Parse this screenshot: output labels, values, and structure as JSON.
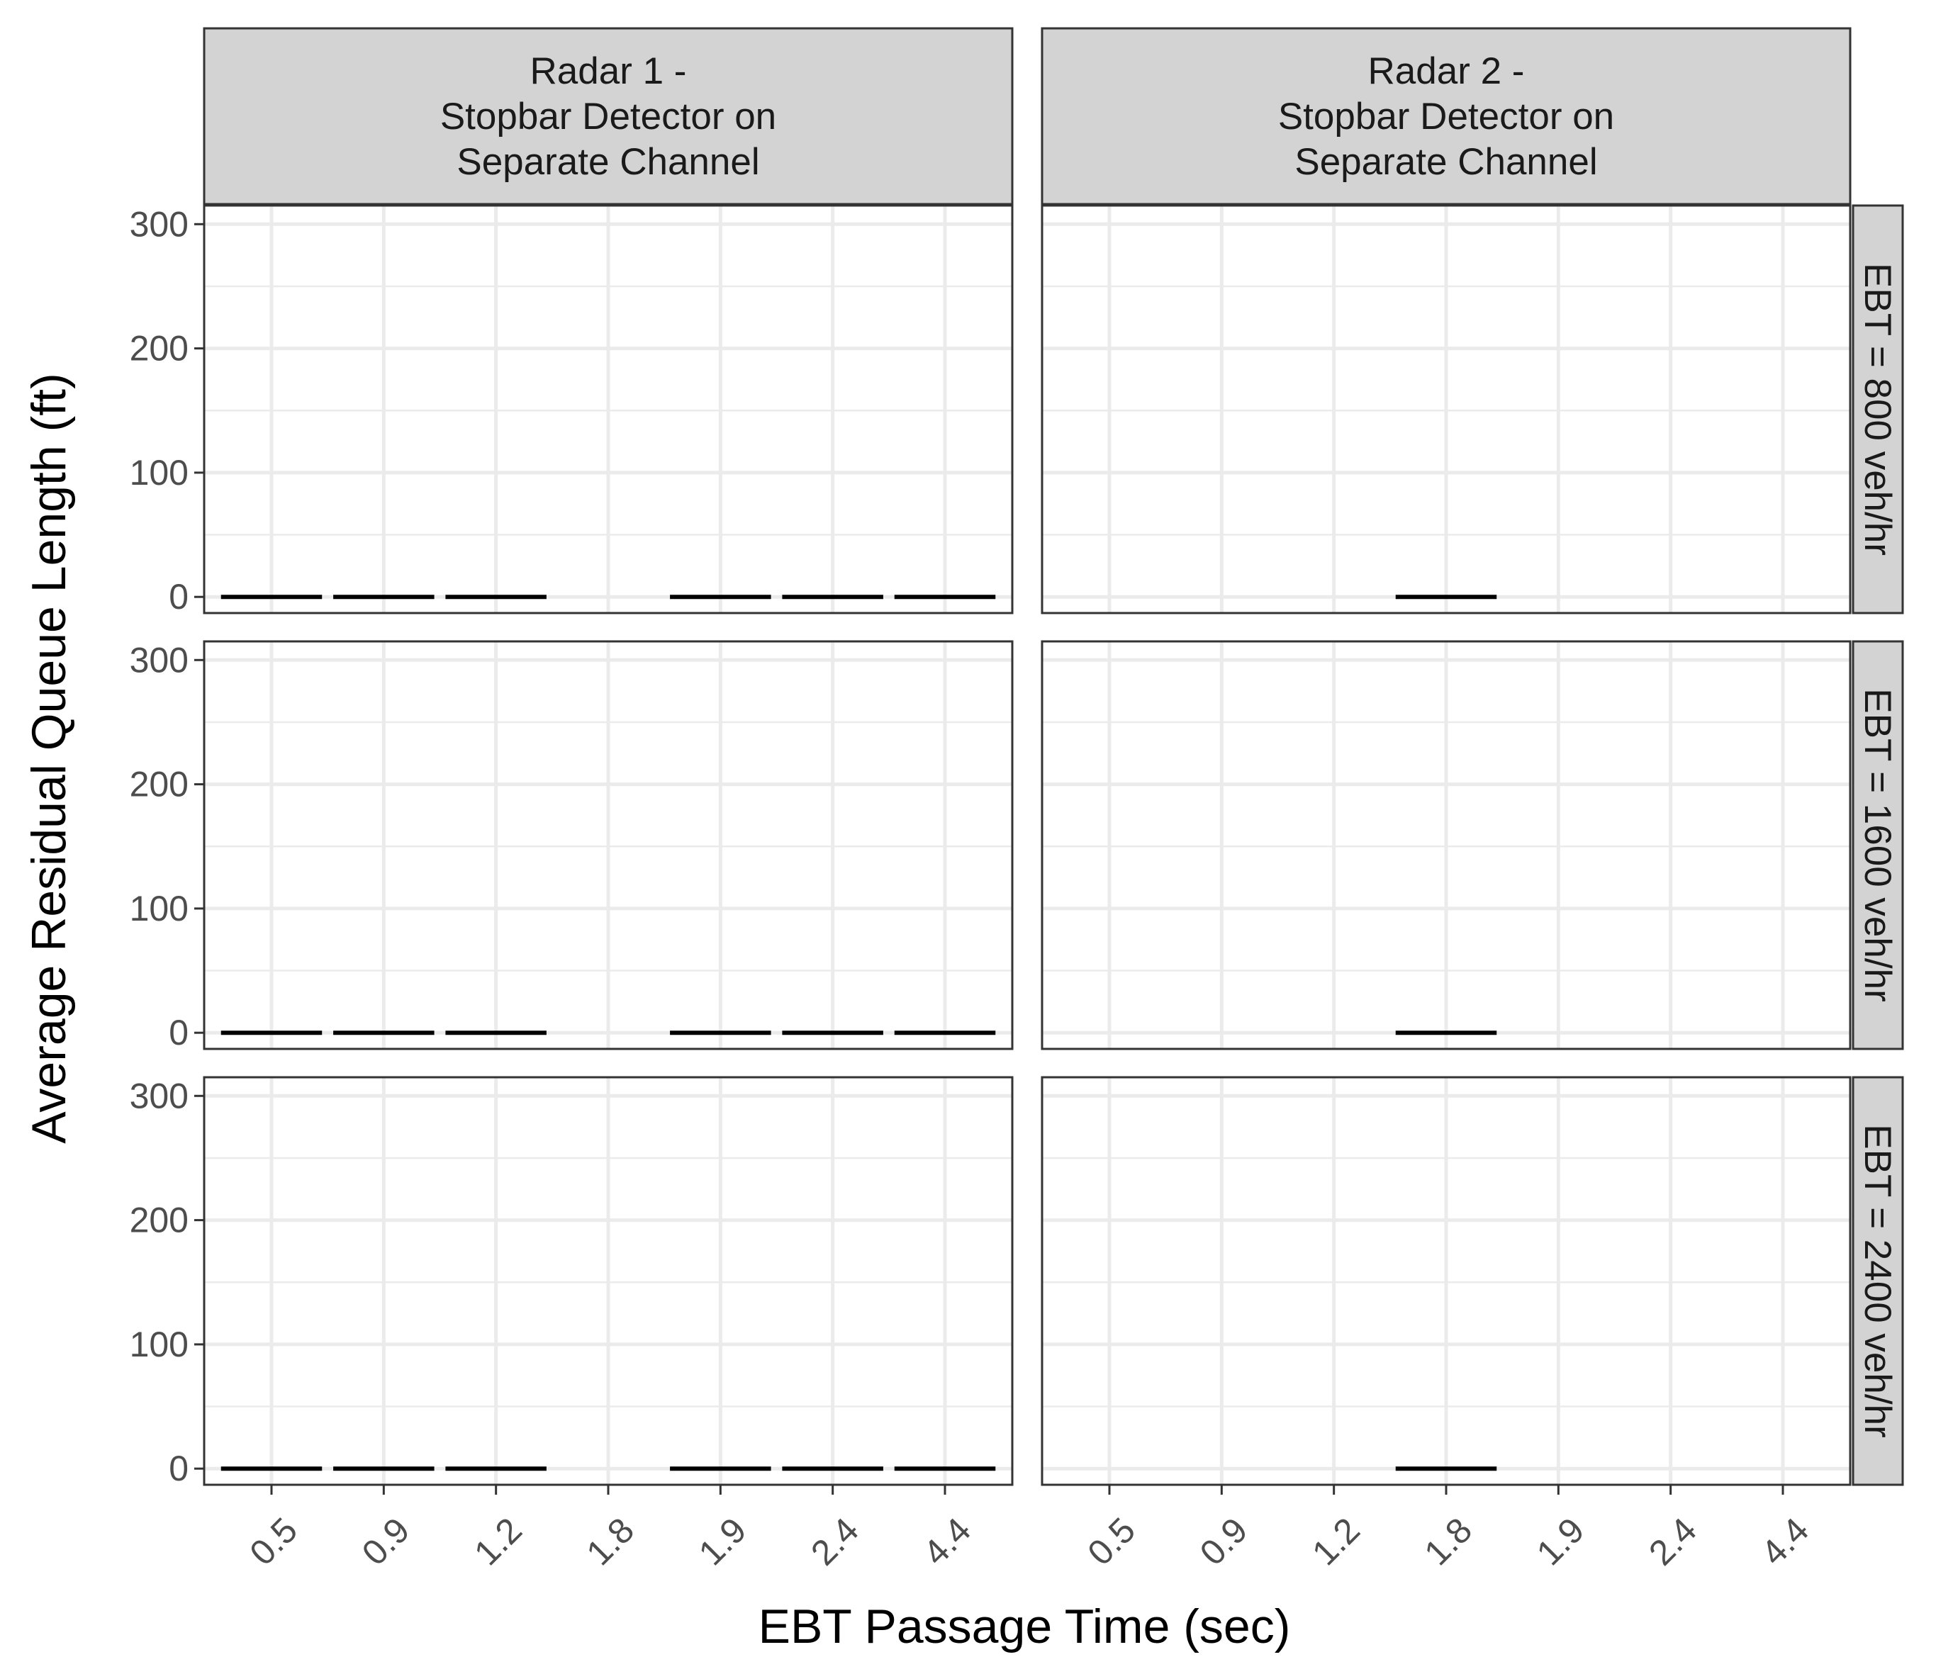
{
  "chart_data": {
    "type": "crossbar",
    "xlabel": "EBT Passage Time (sec)",
    "ylabel": "Average Residual Queue Length (ft)",
    "categories": [
      "0.5",
      "0.9",
      "1.2",
      "1.8",
      "1.9",
      "2.4",
      "4.4"
    ],
    "y_ticks": [
      0,
      100,
      200,
      300
    ],
    "ylim": [
      -13,
      315
    ],
    "grid": true,
    "column_facets": [
      "Radar 1 -\nStopbar Detector on\nSeparate Channel",
      "Radar 2 -\nStopbar Detector on\nSeparate Channel"
    ],
    "row_facets": [
      "EBT = 800 veh/hr",
      "EBT = 1600 veh/hr",
      "EBT = 2400 veh/hr"
    ],
    "panels": [
      {
        "column": 0,
        "row": 0,
        "points": [
          {
            "x": "0.5",
            "y": 0
          },
          {
            "x": "0.9",
            "y": 0
          },
          {
            "x": "1.2",
            "y": 0
          },
          {
            "x": "1.9",
            "y": 0
          },
          {
            "x": "2.4",
            "y": 0
          },
          {
            "x": "4.4",
            "y": 0
          }
        ]
      },
      {
        "column": 1,
        "row": 0,
        "points": [
          {
            "x": "1.8",
            "y": 0
          }
        ]
      },
      {
        "column": 0,
        "row": 1,
        "points": [
          {
            "x": "0.5",
            "y": 0
          },
          {
            "x": "0.9",
            "y": 0
          },
          {
            "x": "1.2",
            "y": 0
          },
          {
            "x": "1.9",
            "y": 0
          },
          {
            "x": "2.4",
            "y": 0
          },
          {
            "x": "4.4",
            "y": 0
          }
        ]
      },
      {
        "column": 1,
        "row": 1,
        "points": [
          {
            "x": "1.8",
            "y": 0
          }
        ]
      },
      {
        "column": 0,
        "row": 2,
        "points": [
          {
            "x": "0.5",
            "y": 0
          },
          {
            "x": "0.9",
            "y": 0
          },
          {
            "x": "1.2",
            "y": 0
          },
          {
            "x": "1.9",
            "y": 0
          },
          {
            "x": "2.4",
            "y": 0
          },
          {
            "x": "4.4",
            "y": 0
          }
        ]
      },
      {
        "column": 1,
        "row": 2,
        "points": [
          {
            "x": "1.8",
            "y": 0
          }
        ]
      }
    ],
    "colors": {
      "strip_fill": "#d3d3d3",
      "border": "#333333",
      "grid": "#ebebeb",
      "mark": "#000000"
    }
  }
}
